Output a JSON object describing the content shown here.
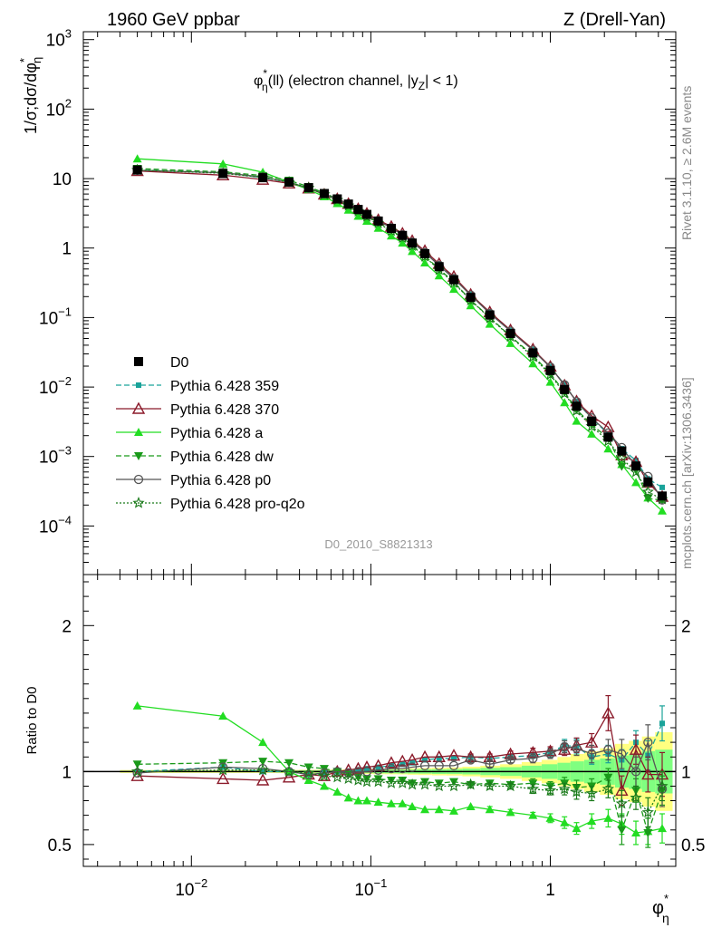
{
  "header": {
    "left": "1960 GeV ppbar",
    "right": "Z (Drell-Yan)"
  },
  "side_labels": {
    "right_top": "Rivet 3.1.10, ≥ 2.6M events",
    "right_bottom": "mcplots.cern.ch [arXiv:1306.3436]"
  },
  "watermark": "D0_2010_S8821313",
  "colors": {
    "band_yellow": "#ffff80",
    "band_green": "#80ff80",
    "p359": "#1aa39a",
    "p370": "#8b1a2a",
    "pa": "#22dd22",
    "pdw": "#1a9a1a",
    "pp0": "#555555",
    "pq2o": "#1a7a1a"
  },
  "chart_data": [
    {
      "type": "line",
      "panel": "main",
      "title": "φ*η(ll) (electron channel, |yZ| < 1)",
      "title_parts": {
        "phi": "φ",
        "sup": "*",
        "sub": "η",
        "a": "(ll) (electron channel, |y",
        "z": "Z",
        "b": "| < 1)"
      },
      "ylabel": "1/σ;dσ/dφ*η",
      "ylabel_parts": {
        "a": "1/σ;dσ/dφ",
        "sup": "*",
        "sub": "η"
      },
      "xscale": "log",
      "yscale": "log",
      "xlim": [
        0.0025,
        5
      ],
      "ylim": [
        2e-05,
        1300
      ],
      "y_ticks": [
        {
          "v": 0.0001,
          "base": "10",
          "exp": "−4"
        },
        {
          "v": 0.001,
          "base": "10",
          "exp": "−3"
        },
        {
          "v": 0.01,
          "base": "10",
          "exp": "−2"
        },
        {
          "v": 0.1,
          "base": "10",
          "exp": "−1"
        },
        {
          "v": 1,
          "base": "1",
          "exp": ""
        },
        {
          "v": 10,
          "base": "10",
          "exp": ""
        },
        {
          "v": 100,
          "base": "10",
          "exp": "2"
        },
        {
          "v": 1000,
          "base": "10",
          "exp": "3"
        }
      ],
      "legend_position": "lower-left",
      "x": [
        0.005,
        0.015,
        0.025,
        0.035,
        0.045,
        0.055,
        0.065,
        0.075,
        0.085,
        0.095,
        0.11,
        0.13,
        0.15,
        0.17,
        0.2,
        0.24,
        0.29,
        0.36,
        0.46,
        0.6,
        0.8,
        1.0,
        1.2,
        1.4,
        1.7,
        2.1,
        2.5,
        3.0,
        3.5,
        4.2
      ],
      "series": [
        {
          "name": "D0",
          "key": "d0",
          "color": "#000000",
          "style": "solid",
          "marker": "square",
          "values": [
            13.3,
            11.8,
            10.3,
            8.9,
            7.4,
            6.1,
            5.1,
            4.3,
            3.6,
            3.05,
            2.45,
            1.92,
            1.52,
            1.18,
            0.83,
            0.54,
            0.35,
            0.195,
            0.109,
            0.059,
            0.031,
            0.0173,
            0.0092,
            0.0053,
            0.0032,
            0.0019,
            0.0012,
            0.00073,
            0.00043,
            0.00027
          ],
          "err": [
            0.3,
            0.2,
            0.2,
            0.15,
            0.1,
            0.1,
            0.08,
            0.07,
            0.06,
            0.05,
            0.04,
            0.03,
            0.03,
            0.02,
            0.02,
            0.01,
            0.008,
            0.005,
            0.003,
            0.002,
            0.001,
            0.0007,
            0.0004,
            0.0003,
            0.0002,
            0.00015,
            0.0001,
            7e-05,
            5e-05,
            4e-05
          ]
        },
        {
          "name": "Pythia 6.428 359",
          "key": "p359",
          "color": "#1aa39a",
          "style": "dashed",
          "marker": "square-small",
          "ratio": [
            1.0,
            1.03,
            1.0,
            1.0,
            0.98,
            0.99,
            1.0,
            1.0,
            1.01,
            1.02,
            1.03,
            1.04,
            1.05,
            1.06,
            1.08,
            1.09,
            1.09,
            1.1,
            1.09,
            1.1,
            1.11,
            1.13,
            1.18,
            1.17,
            1.1,
            1.12,
            1.08,
            1.2,
            1.11,
            1.33
          ],
          "err": [
            0.01,
            0.01,
            0.01,
            0.01,
            0.01,
            0.01,
            0.01,
            0.01,
            0.01,
            0.01,
            0.01,
            0.01,
            0.01,
            0.01,
            0.01,
            0.01,
            0.01,
            0.01,
            0.01,
            0.02,
            0.02,
            0.03,
            0.04,
            0.05,
            0.05,
            0.06,
            0.07,
            0.08,
            0.1,
            0.12
          ]
        },
        {
          "name": "Pythia 6.428 370",
          "key": "p370",
          "color": "#8b1a2a",
          "style": "solid",
          "marker": "triangle-open",
          "ratio": [
            0.97,
            0.95,
            0.94,
            0.96,
            0.98,
            0.97,
            1.0,
            1.01,
            1.02,
            1.03,
            1.04,
            1.06,
            1.07,
            1.08,
            1.1,
            1.1,
            1.11,
            1.1,
            1.1,
            1.12,
            1.13,
            1.14,
            1.15,
            1.18,
            1.2,
            1.4,
            0.87,
            1.15,
            0.98,
            0.98
          ],
          "err": [
            0.01,
            0.01,
            0.01,
            0.01,
            0.01,
            0.01,
            0.01,
            0.01,
            0.01,
            0.01,
            0.01,
            0.01,
            0.01,
            0.01,
            0.01,
            0.01,
            0.01,
            0.02,
            0.02,
            0.02,
            0.03,
            0.03,
            0.04,
            0.05,
            0.06,
            0.12,
            0.1,
            0.1,
            0.12,
            0.15
          ]
        },
        {
          "name": "Pythia 6.428 a",
          "key": "pa",
          "color": "#22dd22",
          "style": "solid",
          "marker": "triangle-filled",
          "ratio": [
            1.45,
            1.38,
            1.2,
            1.0,
            0.94,
            0.9,
            0.86,
            0.82,
            0.8,
            0.8,
            0.79,
            0.78,
            0.78,
            0.76,
            0.74,
            0.74,
            0.73,
            0.76,
            0.74,
            0.72,
            0.7,
            0.68,
            0.65,
            0.61,
            0.66,
            0.68,
            0.64,
            0.58,
            0.59,
            0.61
          ],
          "err": [
            0.01,
            0.01,
            0.01,
            0.01,
            0.01,
            0.01,
            0.01,
            0.01,
            0.01,
            0.01,
            0.01,
            0.01,
            0.01,
            0.01,
            0.01,
            0.01,
            0.01,
            0.01,
            0.02,
            0.02,
            0.02,
            0.03,
            0.04,
            0.04,
            0.05,
            0.06,
            0.07,
            0.08,
            0.09,
            0.1
          ]
        },
        {
          "name": "Pythia 6.428 dw",
          "key": "pdw",
          "color": "#1a9a1a",
          "style": "dashed",
          "marker": "triangle-down",
          "ratio": [
            1.05,
            1.06,
            1.07,
            1.06,
            1.03,
            1.02,
            1.0,
            0.98,
            0.96,
            0.95,
            0.95,
            0.94,
            0.94,
            0.92,
            0.93,
            0.92,
            0.93,
            0.91,
            0.92,
            0.91,
            0.92,
            0.9,
            0.92,
            0.89,
            0.9,
            0.96,
            0.6,
            0.87,
            0.58,
            0.87
          ],
          "err": [
            0.01,
            0.01,
            0.01,
            0.01,
            0.01,
            0.01,
            0.01,
            0.01,
            0.01,
            0.01,
            0.01,
            0.01,
            0.01,
            0.01,
            0.01,
            0.01,
            0.01,
            0.02,
            0.02,
            0.02,
            0.03,
            0.03,
            0.04,
            0.05,
            0.05,
            0.06,
            0.1,
            0.08,
            0.1,
            0.1
          ]
        },
        {
          "name": "Pythia 6.428 p0",
          "key": "pp0",
          "color": "#555555",
          "style": "solid",
          "marker": "circle-open",
          "ratio": [
            0.99,
            1.03,
            1.02,
            1.0,
            0.98,
            0.99,
            1.0,
            0.99,
            1.0,
            1.0,
            1.01,
            1.02,
            1.02,
            1.03,
            1.04,
            1.04,
            1.04,
            1.08,
            1.05,
            1.08,
            1.09,
            1.12,
            1.17,
            1.16,
            1.12,
            1.15,
            1.12,
            1.0,
            1.2,
            0.88
          ],
          "err": [
            0.01,
            0.01,
            0.01,
            0.01,
            0.01,
            0.01,
            0.01,
            0.01,
            0.01,
            0.01,
            0.01,
            0.01,
            0.01,
            0.01,
            0.01,
            0.01,
            0.01,
            0.02,
            0.02,
            0.02,
            0.03,
            0.03,
            0.04,
            0.05,
            0.06,
            0.07,
            0.1,
            0.1,
            0.12,
            0.12
          ]
        },
        {
          "name": "Pythia 6.428 pro-q2o",
          "key": "pq2o",
          "color": "#1a7a1a",
          "style": "dotted",
          "marker": "star-open",
          "ratio": [
            1.0,
            1.01,
            1.01,
            1.0,
            0.99,
            0.97,
            0.96,
            0.95,
            0.94,
            0.93,
            0.93,
            0.92,
            0.92,
            0.91,
            0.91,
            0.9,
            0.9,
            0.91,
            0.9,
            0.9,
            0.88,
            0.87,
            0.88,
            0.86,
            0.85,
            0.88,
            0.78,
            0.82,
            0.72,
            0.9
          ],
          "err": [
            0.01,
            0.01,
            0.01,
            0.01,
            0.01,
            0.01,
            0.01,
            0.01,
            0.01,
            0.01,
            0.01,
            0.01,
            0.01,
            0.01,
            0.01,
            0.01,
            0.01,
            0.02,
            0.02,
            0.02,
            0.03,
            0.03,
            0.04,
            0.05,
            0.05,
            0.06,
            0.09,
            0.08,
            0.1,
            0.1
          ]
        }
      ]
    },
    {
      "type": "line",
      "panel": "ratio",
      "ylabel": "Ratio to D0",
      "xlabel": "φ*η",
      "xlabel_parts": {
        "phi": "φ",
        "sup": "*",
        "sub": "η"
      },
      "xscale": "log",
      "xlim": [
        0.0025,
        5
      ],
      "ylim": [
        0.35,
        2.35
      ],
      "y_ticks": [
        "0.5",
        "1",
        "2"
      ],
      "x_ticks": [
        {
          "v": 0.01,
          "base": "10",
          "exp": "−2"
        },
        {
          "v": 0.1,
          "base": "10",
          "exp": "−1"
        },
        {
          "v": 1,
          "base": "1",
          "exp": ""
        }
      ],
      "band_inner": [
        0.005,
        0.005,
        0.005,
        0.006,
        0.007,
        0.008,
        0.009,
        0.01,
        0.01,
        0.011,
        0.012,
        0.012,
        0.013,
        0.014,
        0.015,
        0.016,
        0.017,
        0.02,
        0.025,
        0.03,
        0.04,
        0.05,
        0.06,
        0.07,
        0.08,
        0.09,
        0.11,
        0.12,
        0.14,
        0.15
      ],
      "band_outer": [
        0.01,
        0.01,
        0.01,
        0.011,
        0.012,
        0.013,
        0.014,
        0.015,
        0.016,
        0.017,
        0.018,
        0.019,
        0.02,
        0.022,
        0.024,
        0.026,
        0.028,
        0.033,
        0.04,
        0.05,
        0.065,
        0.08,
        0.1,
        0.12,
        0.14,
        0.16,
        0.19,
        0.21,
        0.24,
        0.27
      ]
    }
  ]
}
